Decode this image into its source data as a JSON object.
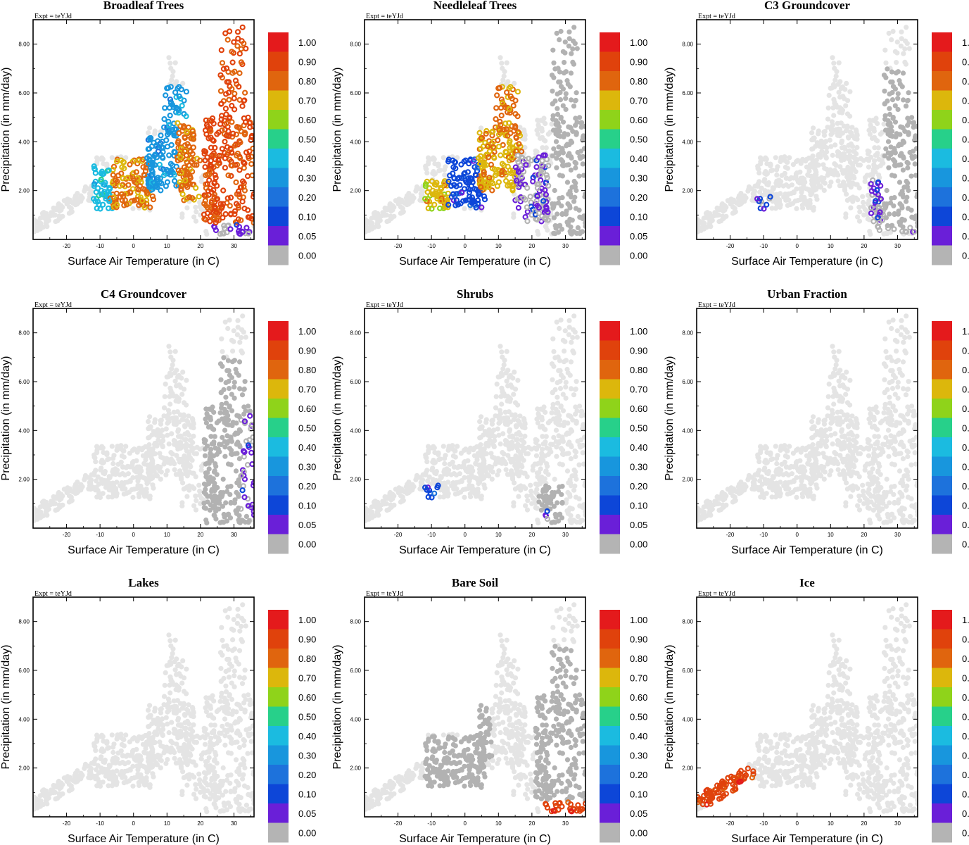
{
  "chart_data": {
    "type": "scatter",
    "expt_label": "Expt = teYJd",
    "xlabel": "Surface Air Temperature (in C)",
    "ylabel": "Precipitation (in mm/day)",
    "xlim": [
      -30,
      36
    ],
    "ylim": [
      0,
      9
    ],
    "x_ticks": [
      -20,
      -10,
      0,
      10,
      20,
      30
    ],
    "x_tick_labels": [
      "-20",
      "-10",
      "0",
      "10",
      "20",
      "30"
    ],
    "y_ticks": [
      2,
      4,
      6,
      8
    ],
    "y_tick_labels": [
      "2.00",
      "4.00",
      "6.00",
      "8.00"
    ],
    "colorbar": {
      "levels": [
        "1.00",
        "0.90",
        "0.80",
        "0.70",
        "0.60",
        "0.50",
        "0.40",
        "0.30",
        "0.20",
        "0.10",
        "0.05",
        "0.00"
      ],
      "colors": [
        "#e41a1c",
        "#e0420c",
        "#e0650e",
        "#dcb70c",
        "#8fd31a",
        "#27d08a",
        "#1bbbe0",
        "#1896dd",
        "#1d72dc",
        "#0d46d8",
        "#6a1fd8",
        "#b4b4b4"
      ]
    },
    "point_colors": {
      "absent": "#e4e4e4",
      "zero": "#b2b2b2"
    },
    "panels": [
      {
        "title": "Broadleaf Trees",
        "regions": [
          {
            "x": [
              -12,
              -6
            ],
            "y": [
              1.2,
              3.0
            ],
            "f": 0.45
          },
          {
            "x": [
              -7,
              6
            ],
            "y": [
              1.3,
              3.3
            ],
            "f": 0.82
          },
          {
            "x": [
              4,
              17
            ],
            "y": [
              2.0,
              4.3
            ],
            "f": 0.35
          },
          {
            "x": [
              9,
              17
            ],
            "y": [
              3.5,
              6.3
            ],
            "f": 0.35
          },
          {
            "x": [
              13,
              20
            ],
            "y": [
              1.6,
              5.0
            ],
            "f": 0.83
          },
          {
            "x": [
              21,
              36
            ],
            "y": [
              0.6,
              8.7
            ],
            "f": 0.92
          },
          {
            "x": [
              22,
              35
            ],
            "y": [
              0.2,
              0.6
            ],
            "f": 0.05
          }
        ]
      },
      {
        "title": "Needleleaf Trees",
        "regions": [
          {
            "x": [
              -12,
              -5
            ],
            "y": [
              1.2,
              2.4
            ],
            "f": 0.75
          },
          {
            "x": [
              -5,
              8
            ],
            "y": [
              1.3,
              3.3
            ],
            "f": 0.15
          },
          {
            "x": [
              4,
              17
            ],
            "y": [
              2.0,
              4.5
            ],
            "f": 0.78
          },
          {
            "x": [
              9,
              16
            ],
            "y": [
              4.3,
              6.3
            ],
            "f": 0.83
          },
          {
            "x": [
              15,
              25
            ],
            "y": [
              0.7,
              3.5
            ],
            "f": 0.05
          },
          {
            "x": [
              26,
              36
            ],
            "y": [
              0.2,
              8.7
            ],
            "f": 0.0
          }
        ]
      },
      {
        "title": "C3 Groundcover",
        "regions": [
          {
            "x": [
              -12,
              -8
            ],
            "y": [
              1.2,
              1.8
            ],
            "f": 0.08
          },
          {
            "x": [
              22,
              36
            ],
            "y": [
              0.3,
              2.5
            ],
            "f": 0.05
          },
          {
            "x": [
              26,
              36
            ],
            "y": [
              0.5,
              7.0
            ],
            "f": 0.0
          }
        ]
      },
      {
        "title": "C4 Groundcover",
        "regions": [
          {
            "x": [
              21,
              35
            ],
            "y": [
              0.2,
              7.0
            ],
            "f": 0.0
          },
          {
            "x": [
              32,
              36
            ],
            "y": [
              0.5,
              4.6
            ],
            "f": 0.05
          }
        ]
      },
      {
        "title": "Shrubs",
        "regions": [
          {
            "x": [
              -12,
              -8
            ],
            "y": [
              1.0,
              1.8
            ],
            "f": 0.15
          },
          {
            "x": [
              22,
              30
            ],
            "y": [
              0.2,
              1.8
            ],
            "f": 0.0
          },
          {
            "x": [
              22,
              25
            ],
            "y": [
              0.2,
              0.7
            ],
            "f": 0.08
          }
        ]
      },
      {
        "title": "Urban Fraction",
        "regions": []
      },
      {
        "title": "Lakes",
        "regions": []
      },
      {
        "title": "Bare Soil",
        "regions": [
          {
            "x": [
              -12,
              6
            ],
            "y": [
              1.2,
              3.3
            ],
            "f": 0.0
          },
          {
            "x": [
              -2,
              8
            ],
            "y": [
              2.4,
              5.5
            ],
            "f": 0.0
          },
          {
            "x": [
              21,
              36
            ],
            "y": [
              0.6,
              7.0
            ],
            "f": 0.0
          },
          {
            "x": [
              22,
              36
            ],
            "y": [
              0.0,
              0.6
            ],
            "f": 0.95
          }
        ]
      },
      {
        "title": "Ice",
        "regions": [
          {
            "x": [
              -30,
              -13
            ],
            "y": [
              0.5,
              2.0
            ],
            "f": 0.95
          }
        ]
      }
    ]
  }
}
